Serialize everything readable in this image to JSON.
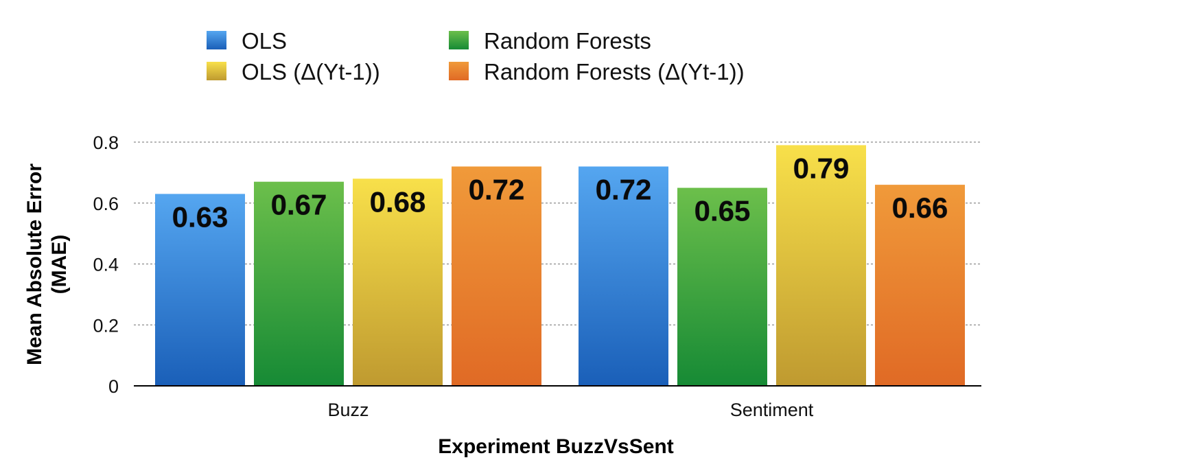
{
  "chart_data": {
    "type": "bar",
    "title": "",
    "xlabel": "Experiment BuzzVsSent",
    "ylabel_lines": [
      "Mean Absolute Error",
      "(MAE)"
    ],
    "categories": [
      "Buzz",
      "Sentiment"
    ],
    "series": [
      {
        "name": "OLS",
        "values": [
          0.63,
          0.72
        ],
        "color": "#2f7fd8",
        "color_light": "#55a6f0",
        "color_dark": "#1a5fb8"
      },
      {
        "name": "Random Forests",
        "values": [
          0.67,
          0.65
        ],
        "color": "#3aa048",
        "color_light": "#6cbf4b",
        "color_dark": "#168a35"
      },
      {
        "name": "OLS (Δ(Yt-1))",
        "values": [
          0.68,
          0.79
        ],
        "color": "#e0c040",
        "color_light": "#f8e04a",
        "color_dark": "#bf9a30"
      },
      {
        "name": "Random Forests (Δ(Yt-1))",
        "values": [
          0.72,
          0.66
        ],
        "color": "#e87a2a",
        "color_light": "#f09a3a",
        "color_dark": "#e06a25"
      }
    ],
    "data_labels": [
      [
        "0.63",
        "0.72"
      ],
      [
        "0.67",
        "0.65"
      ],
      [
        "0.68",
        "0.79"
      ],
      [
        "0.72",
        "0.66"
      ]
    ],
    "ylim": [
      0,
      0.8
    ],
    "yticks": [
      0,
      0.2,
      0.4,
      0.6,
      0.8
    ],
    "ytick_labels": [
      "0",
      "0.2",
      "0.4",
      "0.6",
      "0.8"
    ],
    "grid": true,
    "legend_position": "top-left"
  }
}
